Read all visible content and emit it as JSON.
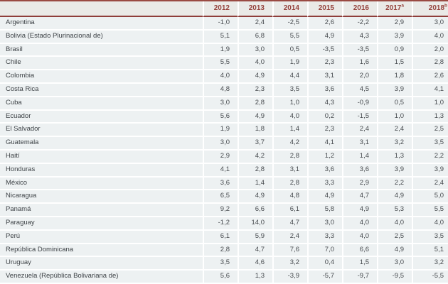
{
  "table": {
    "title_semantic": "annual-gdp-growth-rates-latin-america",
    "country_column_header": "",
    "columns": [
      {
        "label": "2012",
        "sup": ""
      },
      {
        "label": "2013",
        "sup": ""
      },
      {
        "label": "2014",
        "sup": ""
      },
      {
        "label": "2015",
        "sup": ""
      },
      {
        "label": "2016",
        "sup": ""
      },
      {
        "label": "2017",
        "sup": "a"
      },
      {
        "label": "2018",
        "sup": "b"
      }
    ],
    "rows": [
      {
        "name": "Argentina",
        "values": [
          "-1,0",
          "2,4",
          "-2,5",
          "2,6",
          "-2,2",
          "2,9",
          "3,0"
        ]
      },
      {
        "name": "Bolivia (Estado Plurinacional de)",
        "values": [
          "5,1",
          "6,8",
          "5,5",
          "4,9",
          "4,3",
          "3,9",
          "4,0"
        ]
      },
      {
        "name": "Brasil",
        "values": [
          "1,9",
          "3,0",
          "0,5",
          "-3,5",
          "-3,5",
          "0,9",
          "2,0"
        ]
      },
      {
        "name": "Chile",
        "values": [
          "5,5",
          "4,0",
          "1,9",
          "2,3",
          "1,6",
          "1,5",
          "2,8"
        ]
      },
      {
        "name": "Colombia",
        "values": [
          "4,0",
          "4,9",
          "4,4",
          "3,1",
          "2,0",
          "1,8",
          "2,6"
        ]
      },
      {
        "name": "Costa Rica",
        "values": [
          "4,8",
          "2,3",
          "3,5",
          "3,6",
          "4,5",
          "3,9",
          "4,1"
        ]
      },
      {
        "name": "Cuba",
        "values": [
          "3,0",
          "2,8",
          "1,0",
          "4,3",
          "-0,9",
          "0,5",
          "1,0"
        ]
      },
      {
        "name": "Ecuador",
        "values": [
          "5,6",
          "4,9",
          "4,0",
          "0,2",
          "-1,5",
          "1,0",
          "1,3"
        ]
      },
      {
        "name": "El Salvador",
        "values": [
          "1,9",
          "1,8",
          "1,4",
          "2,3",
          "2,4",
          "2,4",
          "2,5"
        ]
      },
      {
        "name": "Guatemala",
        "values": [
          "3,0",
          "3,7",
          "4,2",
          "4,1",
          "3,1",
          "3,2",
          "3,5"
        ]
      },
      {
        "name": "Haití",
        "values": [
          "2,9",
          "4,2",
          "2,8",
          "1,2",
          "1,4",
          "1,3",
          "2,2"
        ]
      },
      {
        "name": "Honduras",
        "values": [
          "4,1",
          "2,8",
          "3,1",
          "3,6",
          "3,6",
          "3,9",
          "3,9"
        ]
      },
      {
        "name": "México",
        "values": [
          "3,6",
          "1,4",
          "2,8",
          "3,3",
          "2,9",
          "2,2",
          "2,4"
        ]
      },
      {
        "name": "Nicaragua",
        "values": [
          "6,5",
          "4,9",
          "4,8",
          "4,9",
          "4,7",
          "4,9",
          "5,0"
        ]
      },
      {
        "name": "Panamá",
        "values": [
          "9,2",
          "6,6",
          "6,1",
          "5,8",
          "4,9",
          "5,3",
          "5,5"
        ]
      },
      {
        "name": "Paraguay",
        "values": [
          "-1,2",
          "14,0",
          "4,7",
          "3,0",
          "4,0",
          "4,0",
          "4,0"
        ]
      },
      {
        "name": "Perú",
        "values": [
          "6,1",
          "5,9",
          "2,4",
          "3,3",
          "4,0",
          "2,5",
          "3,5"
        ]
      },
      {
        "name": "República Dominicana",
        "values": [
          "2,8",
          "4,7",
          "7,6",
          "7,0",
          "6,6",
          "4,9",
          "5,1"
        ]
      },
      {
        "name": "Uruguay",
        "values": [
          "3,5",
          "4,6",
          "3,2",
          "0,4",
          "1,5",
          "3,0",
          "3,2"
        ]
      },
      {
        "name": "Venezuela (República Bolivariana de)",
        "values": [
          "5,6",
          "1,3",
          "-3,9",
          "-5,7",
          "-9,7",
          "-9,5",
          "-5,5"
        ]
      }
    ],
    "colors": {
      "accent_rule": "#9a4a42",
      "header_underline": "#8f3e3a",
      "header_text": "#96433d",
      "header_bg": "#eaeae7",
      "row_bg": "#edf1f2",
      "country_text": "#3e4347",
      "value_text": "#474b4f"
    }
  }
}
